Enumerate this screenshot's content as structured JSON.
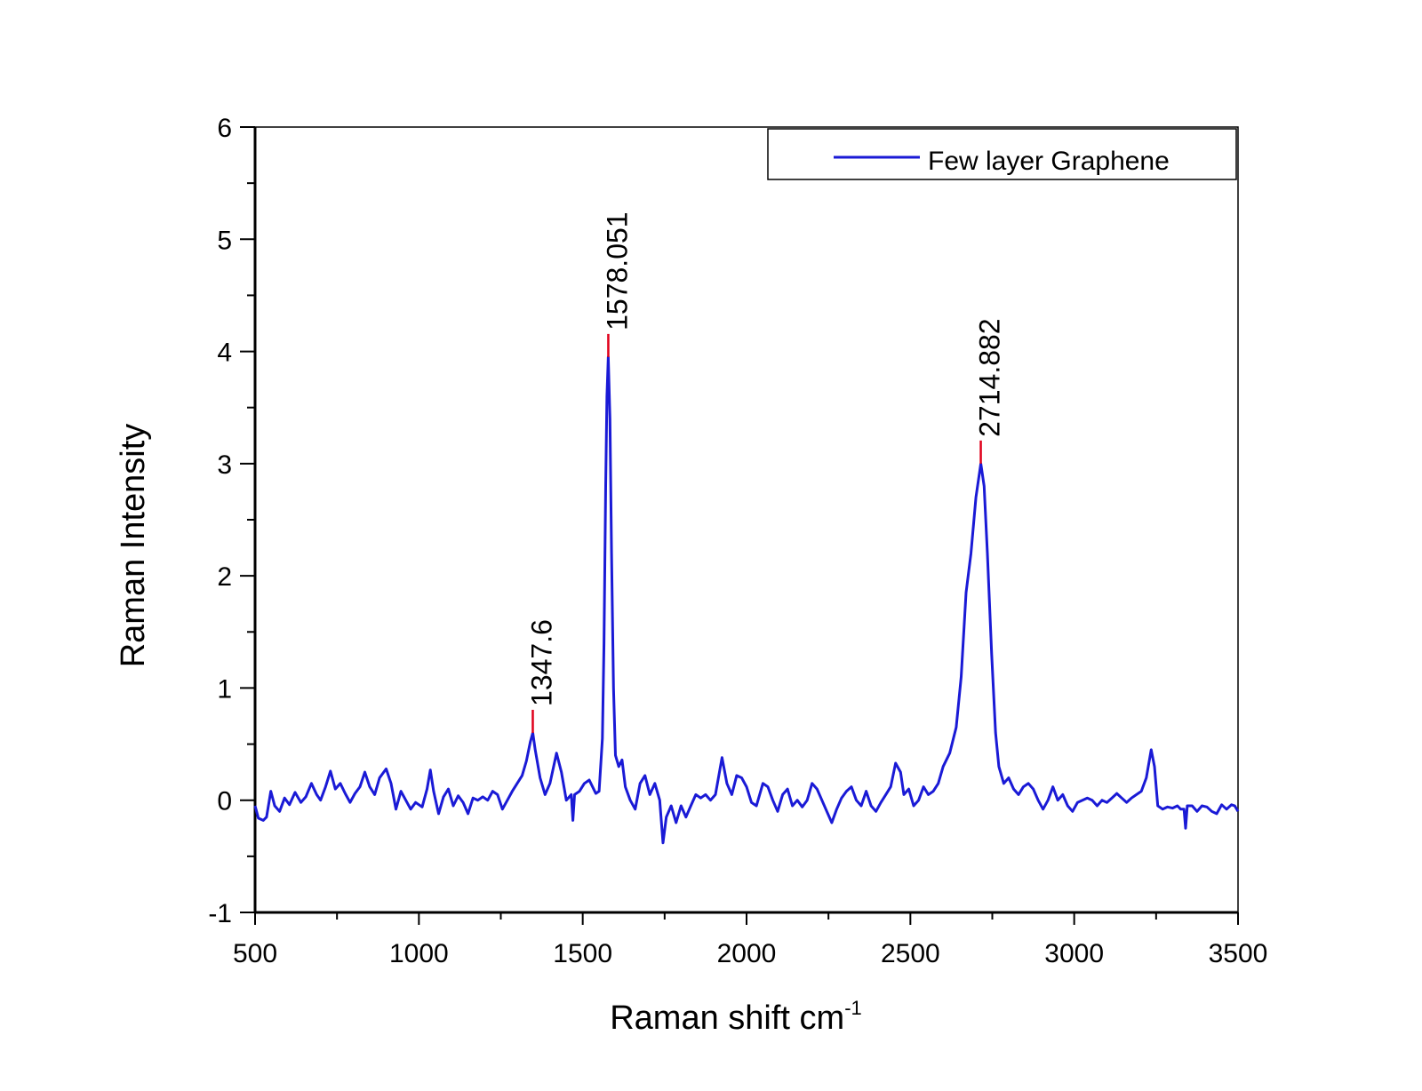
{
  "chart_data": {
    "type": "line",
    "title": "",
    "xlabel": "Raman shift cm",
    "xlabel_superscript": "-1",
    "ylabel": "Raman Intensity",
    "xlim": [
      500,
      3500
    ],
    "ylim": [
      -1,
      6
    ],
    "x_ticks": [
      "500",
      "1000",
      "1500",
      "2000",
      "2500",
      "3000",
      "3500"
    ],
    "y_ticks": [
      "-1",
      "0",
      "1",
      "2",
      "3",
      "4",
      "5",
      "6"
    ],
    "grid": false,
    "legend": {
      "position": "top-right",
      "entries": [
        "Few layer Graphene"
      ]
    },
    "series": [
      {
        "name": "Few layer Graphene",
        "color": "#1a1ad6",
        "points": [
          [
            500,
            -0.05
          ],
          [
            510,
            -0.16
          ],
          [
            525,
            -0.18
          ],
          [
            535,
            -0.15
          ],
          [
            548,
            0.08
          ],
          [
            560,
            -0.05
          ],
          [
            575,
            -0.1
          ],
          [
            590,
            0.02
          ],
          [
            605,
            -0.04
          ],
          [
            622,
            0.07
          ],
          [
            640,
            -0.02
          ],
          [
            655,
            0.03
          ],
          [
            672,
            0.15
          ],
          [
            688,
            0.05
          ],
          [
            700,
            0.0
          ],
          [
            715,
            0.12
          ],
          [
            730,
            0.26
          ],
          [
            745,
            0.1
          ],
          [
            760,
            0.15
          ],
          [
            775,
            0.06
          ],
          [
            790,
            -0.02
          ],
          [
            805,
            0.06
          ],
          [
            820,
            0.12
          ],
          [
            835,
            0.25
          ],
          [
            850,
            0.12
          ],
          [
            865,
            0.05
          ],
          [
            880,
            0.2
          ],
          [
            900,
            0.28
          ],
          [
            915,
            0.15
          ],
          [
            930,
            -0.08
          ],
          [
            945,
            0.08
          ],
          [
            960,
            0.0
          ],
          [
            975,
            -0.08
          ],
          [
            990,
            -0.02
          ],
          [
            1010,
            -0.06
          ],
          [
            1025,
            0.1
          ],
          [
            1035,
            0.27
          ],
          [
            1045,
            0.08
          ],
          [
            1060,
            -0.12
          ],
          [
            1075,
            0.03
          ],
          [
            1090,
            0.1
          ],
          [
            1105,
            -0.05
          ],
          [
            1120,
            0.04
          ],
          [
            1135,
            -0.02
          ],
          [
            1150,
            -0.12
          ],
          [
            1165,
            0.02
          ],
          [
            1180,
            0.0
          ],
          [
            1195,
            0.03
          ],
          [
            1210,
            0.0
          ],
          [
            1225,
            0.08
          ],
          [
            1240,
            0.05
          ],
          [
            1255,
            -0.08
          ],
          [
            1270,
            0.0
          ],
          [
            1285,
            0.08
          ],
          [
            1300,
            0.15
          ],
          [
            1315,
            0.22
          ],
          [
            1328,
            0.35
          ],
          [
            1340,
            0.52
          ],
          [
            1347.6,
            0.6
          ],
          [
            1355,
            0.45
          ],
          [
            1370,
            0.2
          ],
          [
            1385,
            0.05
          ],
          [
            1400,
            0.15
          ],
          [
            1420,
            0.42
          ],
          [
            1435,
            0.25
          ],
          [
            1450,
            0.0
          ],
          [
            1465,
            0.05
          ],
          [
            1470,
            -0.18
          ],
          [
            1475,
            0.05
          ],
          [
            1490,
            0.08
          ],
          [
            1505,
            0.15
          ],
          [
            1520,
            0.18
          ],
          [
            1540,
            0.06
          ],
          [
            1550,
            0.08
          ],
          [
            1560,
            0.55
          ],
          [
            1565,
            1.4
          ],
          [
            1570,
            2.8
          ],
          [
            1574,
            3.6
          ],
          [
            1578.051,
            3.95
          ],
          [
            1583,
            3.4
          ],
          [
            1588,
            2.2
          ],
          [
            1594,
            1.0
          ],
          [
            1600,
            0.4
          ],
          [
            1610,
            0.3
          ],
          [
            1620,
            0.36
          ],
          [
            1630,
            0.12
          ],
          [
            1645,
            0.0
          ],
          [
            1660,
            -0.08
          ],
          [
            1675,
            0.15
          ],
          [
            1690,
            0.22
          ],
          [
            1705,
            0.05
          ],
          [
            1720,
            0.15
          ],
          [
            1735,
            0.0
          ],
          [
            1745,
            -0.38
          ],
          [
            1755,
            -0.15
          ],
          [
            1770,
            -0.05
          ],
          [
            1785,
            -0.2
          ],
          [
            1800,
            -0.05
          ],
          [
            1815,
            -0.15
          ],
          [
            1830,
            -0.05
          ],
          [
            1845,
            0.05
          ],
          [
            1860,
            0.02
          ],
          [
            1875,
            0.05
          ],
          [
            1890,
            0.0
          ],
          [
            1905,
            0.05
          ],
          [
            1925,
            0.38
          ],
          [
            1940,
            0.15
          ],
          [
            1955,
            0.05
          ],
          [
            1970,
            0.22
          ],
          [
            1985,
            0.2
          ],
          [
            2000,
            0.12
          ],
          [
            2015,
            -0.02
          ],
          [
            2030,
            -0.05
          ],
          [
            2050,
            0.15
          ],
          [
            2065,
            0.12
          ],
          [
            2080,
            0.0
          ],
          [
            2095,
            -0.1
          ],
          [
            2110,
            0.05
          ],
          [
            2125,
            0.1
          ],
          [
            2140,
            -0.05
          ],
          [
            2155,
            0.0
          ],
          [
            2170,
            -0.06
          ],
          [
            2185,
            0.0
          ],
          [
            2200,
            0.15
          ],
          [
            2215,
            0.1
          ],
          [
            2230,
            0.0
          ],
          [
            2245,
            -0.1
          ],
          [
            2260,
            -0.2
          ],
          [
            2275,
            -0.08
          ],
          [
            2290,
            0.02
          ],
          [
            2305,
            0.08
          ],
          [
            2320,
            0.12
          ],
          [
            2335,
            0.0
          ],
          [
            2350,
            -0.05
          ],
          [
            2365,
            0.08
          ],
          [
            2380,
            -0.05
          ],
          [
            2395,
            -0.1
          ],
          [
            2410,
            -0.02
          ],
          [
            2425,
            0.05
          ],
          [
            2440,
            0.12
          ],
          [
            2455,
            0.33
          ],
          [
            2470,
            0.25
          ],
          [
            2480,
            0.05
          ],
          [
            2495,
            0.1
          ],
          [
            2510,
            -0.05
          ],
          [
            2525,
            0.0
          ],
          [
            2540,
            0.12
          ],
          [
            2555,
            0.05
          ],
          [
            2570,
            0.08
          ],
          [
            2585,
            0.15
          ],
          [
            2600,
            0.3
          ],
          [
            2620,
            0.42
          ],
          [
            2640,
            0.65
          ],
          [
            2655,
            1.1
          ],
          [
            2670,
            1.85
          ],
          [
            2685,
            2.2
          ],
          [
            2700,
            2.7
          ],
          [
            2714.882,
            3.0
          ],
          [
            2725,
            2.8
          ],
          [
            2735,
            2.2
          ],
          [
            2748,
            1.3
          ],
          [
            2760,
            0.6
          ],
          [
            2770,
            0.3
          ],
          [
            2785,
            0.15
          ],
          [
            2800,
            0.2
          ],
          [
            2815,
            0.1
          ],
          [
            2830,
            0.05
          ],
          [
            2845,
            0.12
          ],
          [
            2860,
            0.15
          ],
          [
            2875,
            0.1
          ],
          [
            2890,
            0.0
          ],
          [
            2905,
            -0.08
          ],
          [
            2920,
            0.0
          ],
          [
            2935,
            0.12
          ],
          [
            2950,
            0.0
          ],
          [
            2965,
            0.05
          ],
          [
            2980,
            -0.05
          ],
          [
            2995,
            -0.1
          ],
          [
            3010,
            -0.02
          ],
          [
            3025,
            0.0
          ],
          [
            3040,
            0.02
          ],
          [
            3055,
            0.0
          ],
          [
            3070,
            -0.05
          ],
          [
            3085,
            0.0
          ],
          [
            3100,
            -0.02
          ],
          [
            3115,
            0.02
          ],
          [
            3130,
            0.06
          ],
          [
            3145,
            0.02
          ],
          [
            3160,
            -0.02
          ],
          [
            3175,
            0.02
          ],
          [
            3190,
            0.05
          ],
          [
            3205,
            0.08
          ],
          [
            3220,
            0.2
          ],
          [
            3235,
            0.45
          ],
          [
            3245,
            0.3
          ],
          [
            3255,
            -0.05
          ],
          [
            3270,
            -0.08
          ],
          [
            3285,
            -0.06
          ],
          [
            3300,
            -0.07
          ],
          [
            3315,
            -0.05
          ],
          [
            3325,
            -0.08
          ],
          [
            3335,
            -0.08
          ],
          [
            3340,
            -0.25
          ],
          [
            3345,
            -0.05
          ],
          [
            3360,
            -0.05
          ],
          [
            3375,
            -0.1
          ],
          [
            3390,
            -0.05
          ],
          [
            3405,
            -0.06
          ],
          [
            3420,
            -0.1
          ],
          [
            3435,
            -0.12
          ],
          [
            3450,
            -0.04
          ],
          [
            3465,
            -0.08
          ],
          [
            3480,
            -0.04
          ],
          [
            3490,
            -0.05
          ],
          [
            3500,
            -0.1
          ]
        ]
      }
    ],
    "annotations": [
      {
        "label": "1347.6",
        "x": 1347.6,
        "y": 0.6
      },
      {
        "label": "1578.051",
        "x": 1578.051,
        "y": 3.95
      },
      {
        "label": "2714.882",
        "x": 2714.882,
        "y": 3.0
      }
    ],
    "colors": {
      "series": "#1a1ad6",
      "peak_marker": "#e0001b",
      "axis": "#000000"
    }
  }
}
